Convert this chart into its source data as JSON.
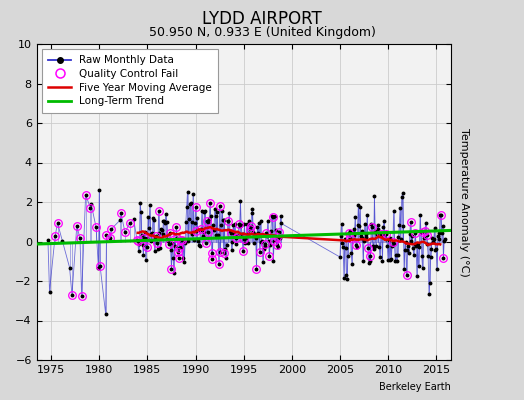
{
  "title": "LYDD AIRPORT",
  "subtitle": "50.950 N, 0.933 E (United Kingdom)",
  "ylabel": "Temperature Anomaly (°C)",
  "credit": "Berkeley Earth",
  "ylim": [
    -6,
    10
  ],
  "xlim": [
    1973.5,
    2016.5
  ],
  "yticks": [
    -6,
    -4,
    -2,
    0,
    2,
    4,
    6,
    8,
    10
  ],
  "xticks": [
    1975,
    1980,
    1985,
    1990,
    1995,
    2000,
    2005,
    2010,
    2015
  ],
  "bg_color": "#d8d8d8",
  "plot_bg_color": "#f2f2f2",
  "raw_color": "#3333cc",
  "raw_alpha": 0.55,
  "ma_color": "#dd0000",
  "trend_color": "#00bb00",
  "qc_color": "#ff00ff",
  "title_fontsize": 12,
  "subtitle_fontsize": 9,
  "tick_fontsize": 8,
  "ylabel_fontsize": 8,
  "legend_fontsize": 7.5,
  "credit_fontsize": 7
}
